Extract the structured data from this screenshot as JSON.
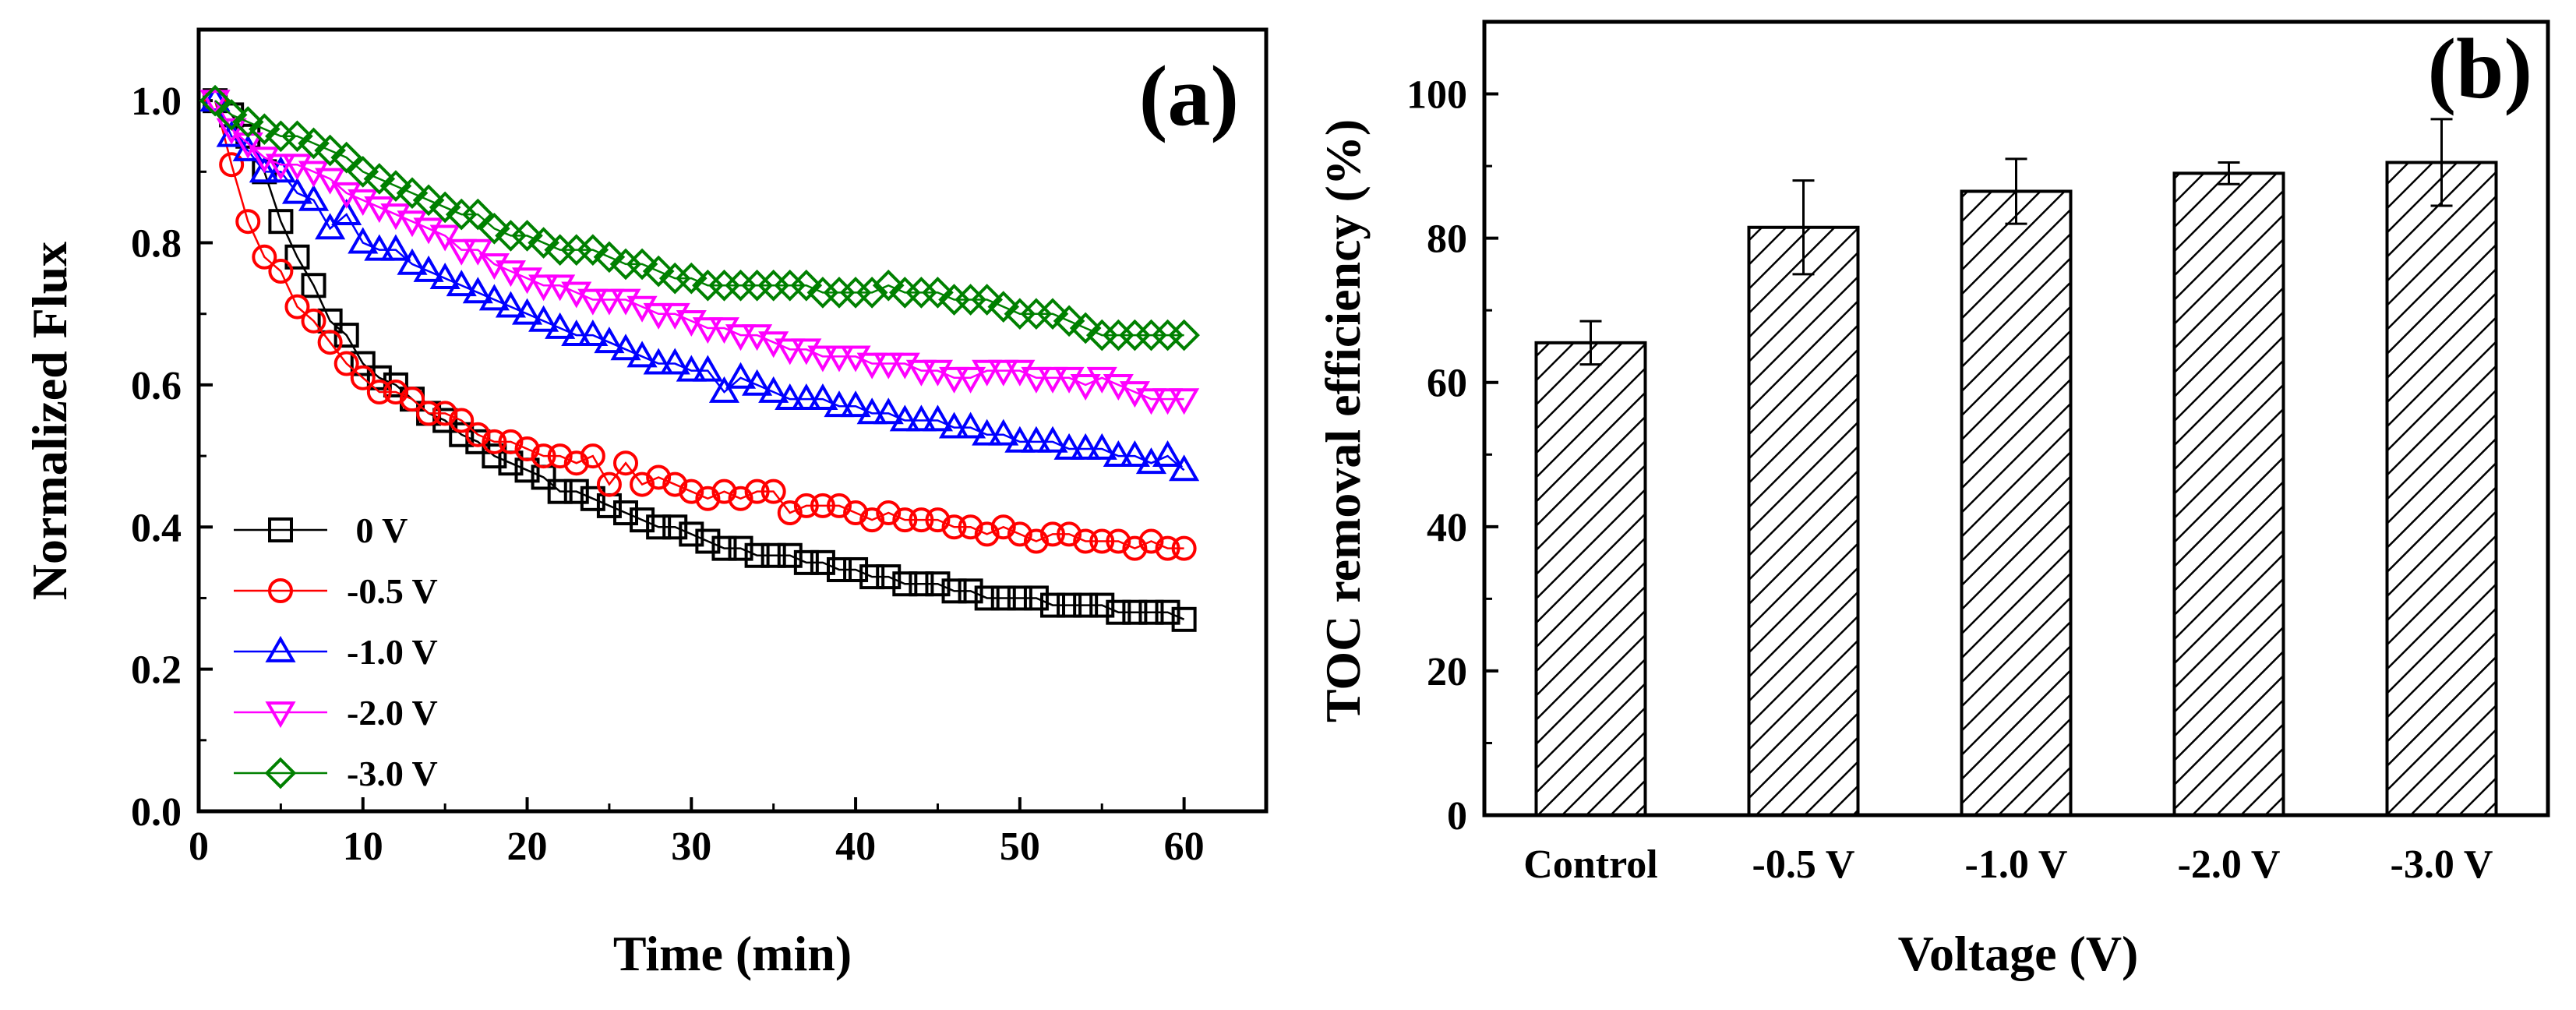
{
  "chart_data": [
    {
      "type": "scatter",
      "panel_label": "(a)",
      "xlabel": "Time (min)",
      "ylabel": "Normalized Flux",
      "xlim": [
        0,
        65
      ],
      "ylim": [
        0,
        1.1
      ],
      "xticks": [
        "0",
        "10",
        "20",
        "30",
        "40",
        "50",
        "60"
      ],
      "yticks": [
        "0.0",
        "0.2",
        "0.4",
        "0.6",
        "0.8",
        "1.0"
      ],
      "legend_position": "bottom-left",
      "series": [
        {
          "name": "0 V",
          "marker": "square",
          "color": "#000000",
          "x": [
            1,
            2,
            3,
            4,
            5,
            6,
            7,
            8,
            9,
            10,
            11,
            12,
            13,
            14,
            15,
            16,
            17,
            18,
            19,
            20,
            21,
            22,
            23,
            24,
            25,
            26,
            27,
            28,
            29,
            30,
            31,
            32,
            33,
            34,
            35,
            36,
            37,
            38,
            39,
            40,
            41,
            42,
            43,
            44,
            45,
            46,
            47,
            48,
            49,
            50,
            51,
            52,
            53,
            54,
            55,
            56,
            57,
            58,
            59,
            60
          ],
          "y": [
            1.0,
            0.98,
            0.95,
            0.9,
            0.83,
            0.78,
            0.74,
            0.69,
            0.67,
            0.63,
            0.61,
            0.6,
            0.58,
            0.56,
            0.55,
            0.53,
            0.52,
            0.5,
            0.49,
            0.48,
            0.47,
            0.45,
            0.45,
            0.44,
            0.43,
            0.42,
            0.41,
            0.4,
            0.4,
            0.39,
            0.38,
            0.37,
            0.37,
            0.36,
            0.36,
            0.36,
            0.35,
            0.35,
            0.34,
            0.34,
            0.33,
            0.33,
            0.32,
            0.32,
            0.32,
            0.31,
            0.31,
            0.3,
            0.3,
            0.3,
            0.3,
            0.29,
            0.29,
            0.29,
            0.29,
            0.28,
            0.28,
            0.28,
            0.28,
            0.27
          ]
        },
        {
          "name": "-0.5 V",
          "marker": "circle",
          "color": "#ff0000",
          "x": [
            1,
            2,
            3,
            4,
            5,
            6,
            7,
            8,
            9,
            10,
            11,
            12,
            13,
            14,
            15,
            16,
            17,
            18,
            19,
            20,
            21,
            22,
            23,
            24,
            25,
            26,
            27,
            28,
            29,
            30,
            31,
            32,
            33,
            34,
            35,
            36,
            37,
            38,
            39,
            40,
            41,
            42,
            43,
            44,
            45,
            46,
            47,
            48,
            49,
            50,
            51,
            52,
            53,
            54,
            55,
            56,
            57,
            58,
            59,
            60
          ],
          "y": [
            1.0,
            0.91,
            0.83,
            0.78,
            0.76,
            0.71,
            0.69,
            0.66,
            0.63,
            0.61,
            0.59,
            0.59,
            0.58,
            0.56,
            0.56,
            0.55,
            0.53,
            0.52,
            0.52,
            0.51,
            0.5,
            0.5,
            0.49,
            0.5,
            0.46,
            0.49,
            0.46,
            0.47,
            0.46,
            0.45,
            0.44,
            0.45,
            0.44,
            0.45,
            0.45,
            0.42,
            0.43,
            0.43,
            0.43,
            0.42,
            0.41,
            0.42,
            0.41,
            0.41,
            0.41,
            0.4,
            0.4,
            0.39,
            0.4,
            0.39,
            0.38,
            0.39,
            0.39,
            0.38,
            0.38,
            0.38,
            0.37,
            0.38,
            0.37,
            0.37
          ]
        },
        {
          "name": "-1.0 V",
          "marker": "triangle-up",
          "color": "#0000ff",
          "x": [
            1,
            2,
            3,
            4,
            5,
            6,
            7,
            8,
            9,
            10,
            11,
            12,
            13,
            14,
            15,
            16,
            17,
            18,
            19,
            20,
            21,
            22,
            23,
            24,
            25,
            26,
            27,
            28,
            29,
            30,
            31,
            32,
            33,
            34,
            35,
            36,
            37,
            38,
            39,
            40,
            41,
            42,
            43,
            44,
            45,
            46,
            47,
            48,
            49,
            50,
            51,
            52,
            53,
            54,
            55,
            56,
            57,
            58,
            59,
            60
          ],
          "y": [
            1.0,
            0.95,
            0.93,
            0.9,
            0.9,
            0.87,
            0.86,
            0.82,
            0.84,
            0.8,
            0.79,
            0.79,
            0.77,
            0.76,
            0.75,
            0.74,
            0.73,
            0.72,
            0.71,
            0.7,
            0.69,
            0.68,
            0.67,
            0.67,
            0.66,
            0.65,
            0.64,
            0.63,
            0.63,
            0.62,
            0.62,
            0.59,
            0.61,
            0.6,
            0.59,
            0.58,
            0.58,
            0.58,
            0.57,
            0.57,
            0.56,
            0.56,
            0.55,
            0.55,
            0.55,
            0.54,
            0.54,
            0.53,
            0.53,
            0.52,
            0.52,
            0.52,
            0.51,
            0.51,
            0.51,
            0.5,
            0.5,
            0.49,
            0.5,
            0.48
          ]
        },
        {
          "name": "-2.0 V",
          "marker": "triangle-down",
          "color": "#ff00ff",
          "x": [
            1,
            2,
            3,
            4,
            5,
            6,
            7,
            8,
            9,
            10,
            11,
            12,
            13,
            14,
            15,
            16,
            17,
            18,
            19,
            20,
            21,
            22,
            23,
            24,
            25,
            26,
            27,
            28,
            29,
            30,
            31,
            32,
            33,
            34,
            35,
            36,
            37,
            38,
            39,
            40,
            41,
            42,
            43,
            44,
            45,
            46,
            47,
            48,
            49,
            50,
            51,
            52,
            53,
            54,
            55,
            56,
            57,
            58,
            59,
            60
          ],
          "y": [
            1.0,
            0.96,
            0.94,
            0.92,
            0.91,
            0.91,
            0.9,
            0.89,
            0.87,
            0.86,
            0.85,
            0.84,
            0.83,
            0.82,
            0.81,
            0.79,
            0.79,
            0.77,
            0.76,
            0.75,
            0.74,
            0.74,
            0.73,
            0.72,
            0.72,
            0.72,
            0.71,
            0.7,
            0.7,
            0.69,
            0.68,
            0.68,
            0.67,
            0.67,
            0.66,
            0.65,
            0.65,
            0.64,
            0.64,
            0.64,
            0.63,
            0.63,
            0.63,
            0.62,
            0.62,
            0.61,
            0.61,
            0.62,
            0.62,
            0.62,
            0.61,
            0.61,
            0.61,
            0.6,
            0.61,
            0.6,
            0.59,
            0.58,
            0.58,
            0.58
          ]
        },
        {
          "name": "-3.0 V",
          "marker": "diamond",
          "color": "#008000",
          "x": [
            1,
            2,
            3,
            4,
            5,
            6,
            7,
            8,
            9,
            10,
            11,
            12,
            13,
            14,
            15,
            16,
            17,
            18,
            19,
            20,
            21,
            22,
            23,
            24,
            25,
            26,
            27,
            28,
            29,
            30,
            31,
            32,
            33,
            34,
            35,
            36,
            37,
            38,
            39,
            40,
            41,
            42,
            43,
            44,
            45,
            46,
            47,
            48,
            49,
            50,
            51,
            52,
            53,
            54,
            55,
            56,
            57,
            58,
            59,
            60
          ],
          "y": [
            1.0,
            0.98,
            0.97,
            0.96,
            0.95,
            0.95,
            0.94,
            0.93,
            0.92,
            0.9,
            0.89,
            0.88,
            0.87,
            0.86,
            0.85,
            0.84,
            0.84,
            0.82,
            0.81,
            0.81,
            0.8,
            0.79,
            0.79,
            0.79,
            0.78,
            0.77,
            0.77,
            0.76,
            0.75,
            0.75,
            0.74,
            0.74,
            0.74,
            0.74,
            0.74,
            0.74,
            0.74,
            0.73,
            0.73,
            0.73,
            0.73,
            0.74,
            0.73,
            0.73,
            0.73,
            0.72,
            0.72,
            0.72,
            0.71,
            0.7,
            0.7,
            0.7,
            0.69,
            0.68,
            0.67,
            0.67,
            0.67,
            0.67,
            0.67,
            0.67
          ]
        }
      ]
    },
    {
      "type": "bar",
      "panel_label": "(b)",
      "xlabel": "Voltage (V)",
      "ylabel": "TOC removal efficiency (%)",
      "ylim": [
        0,
        110
      ],
      "yticks": [
        "0",
        "20",
        "40",
        "60",
        "80",
        "100"
      ],
      "categories": [
        "Control",
        "-0.5 V",
        "-1.0 V",
        "-2.0 V",
        "-3.0 V"
      ],
      "values": [
        65.5,
        81.5,
        86.5,
        89,
        90.5
      ],
      "errors": [
        3,
        6.5,
        4.5,
        1.5,
        6
      ],
      "fill": "hatched"
    }
  ]
}
